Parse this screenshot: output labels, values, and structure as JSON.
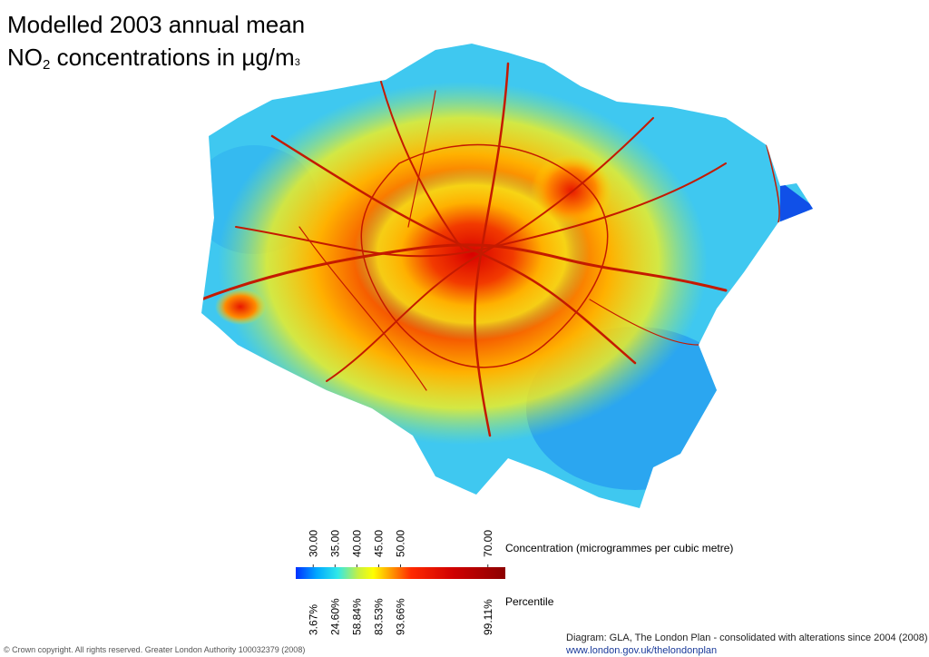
{
  "title": {
    "line1": "Modelled 2003 annual mean",
    "line2": {
      "formula": "NO",
      "subscript": "2",
      "rest": " concentrations in µg/m",
      "superscript": "3"
    }
  },
  "legend": {
    "concentration_label": "Concentration (microgrammes per cubic metre)",
    "percentile_label": "Percentile",
    "range": [
      26,
      74
    ],
    "ticks": [
      {
        "value": 30,
        "label": "30.00"
      },
      {
        "value": 35,
        "label": "35.00"
      },
      {
        "value": 40,
        "label": "40.00"
      },
      {
        "value": 45,
        "label": "45.00"
      },
      {
        "value": 50,
        "label": "50.00"
      },
      {
        "value": 70,
        "label": "70.00"
      }
    ],
    "percentiles": [
      {
        "value": 3.67,
        "label": "3.67%"
      },
      {
        "value": 24.6,
        "label": "24.60%"
      },
      {
        "value": 58.84,
        "label": "58.84%"
      },
      {
        "value": 83.53,
        "label": "83.53%"
      },
      {
        "value": 93.66,
        "label": "93.66%"
      },
      {
        "value": 99.11,
        "label": "99.11%"
      }
    ]
  },
  "footer": {
    "copyright": "© Crown copyright. All rights reserved. Greater London Authority 100032379 (2008)",
    "source": "Diagram:  GLA, The London Plan - consolidated with alterations since 2004 (2008)",
    "url": "www.london.gov.uk/thelondonplan"
  }
}
